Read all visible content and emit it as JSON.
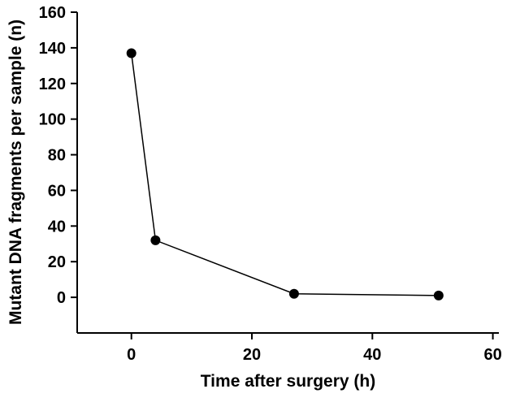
{
  "chart_data": {
    "type": "line",
    "title": "",
    "xlabel": "Time after surgery (h)",
    "ylabel": "Mutant DNA fragments per sample (n)",
    "x": [
      0,
      4,
      27,
      51
    ],
    "y": [
      137,
      32,
      2,
      1
    ],
    "xticks": [
      0,
      20,
      40,
      60
    ],
    "yticks": [
      0,
      20,
      40,
      60,
      80,
      100,
      120,
      140,
      160
    ],
    "xlim": [
      -9,
      61
    ],
    "ylim": [
      -20,
      160
    ],
    "grid": false,
    "legend": null,
    "marker": "filled-circle",
    "marker_color": "#000000",
    "line_color": "#000000",
    "background_color": "#ffffff"
  }
}
